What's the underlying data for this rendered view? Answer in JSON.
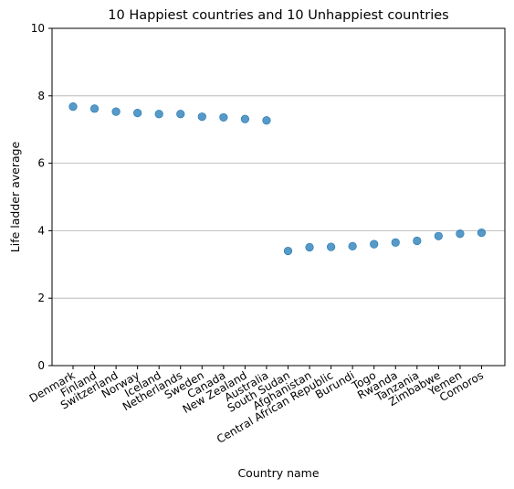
{
  "chart_data": {
    "type": "scatter",
    "title": "10 Happiest countries and 10 Unhappiest countries",
    "xlabel": "Country name",
    "ylabel": "Life ladder average",
    "ylim": [
      0,
      10
    ],
    "yticks": [
      0,
      2,
      4,
      6,
      8,
      10
    ],
    "grid": "horizontal",
    "marker_color": "#1f77b4",
    "categories": [
      "Denmark",
      "Finland",
      "Switzerland",
      "Norway",
      "Iceland",
      "Netherlands",
      "Sweden",
      "Canada",
      "New Zealand",
      "Australia",
      "South Sudan",
      "Afghanistan",
      "Central African Republic",
      "Burundi",
      "Togo",
      "Rwanda",
      "Tanzania",
      "Zimbabwe",
      "Yemen",
      "Comoros"
    ],
    "values": [
      7.68,
      7.62,
      7.53,
      7.49,
      7.46,
      7.46,
      7.38,
      7.36,
      7.31,
      7.27,
      3.4,
      3.51,
      3.52,
      3.54,
      3.6,
      3.65,
      3.7,
      3.84,
      3.91,
      3.94
    ]
  }
}
